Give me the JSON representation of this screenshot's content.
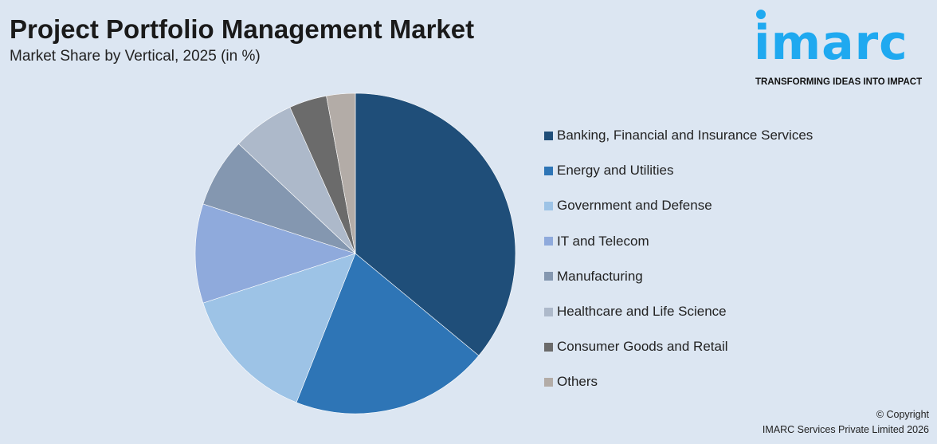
{
  "chart_data": {
    "type": "pie",
    "title": "Project Portfolio Management Market",
    "subtitle": "Market Share by Vertical, 2025 (in %)",
    "categories": [
      "Banking, Financial and Insurance Services",
      "Energy and Utilities",
      "Government and Defense",
      "IT and Telecom",
      "Manufacturing",
      "Healthcare and Life Science",
      "Consumer Goods and Retail",
      "Others"
    ],
    "values": [
      36,
      20,
      14,
      10,
      7,
      6.3,
      3.8,
      2.9
    ],
    "colors": [
      "#1f4e79",
      "#2e75b6",
      "#9dc3e6",
      "#8faadc",
      "#8497b0",
      "#adb9ca",
      "#6b6b6b",
      "#b3aca7"
    ],
    "legend": "right"
  },
  "logo": {
    "word": "imarc",
    "tagline": "TRANSFORMING IDEAS INTO IMPACT"
  },
  "footer": {
    "copyright": "© Copyright",
    "company": "IMARC Services Private Limited 2026"
  }
}
